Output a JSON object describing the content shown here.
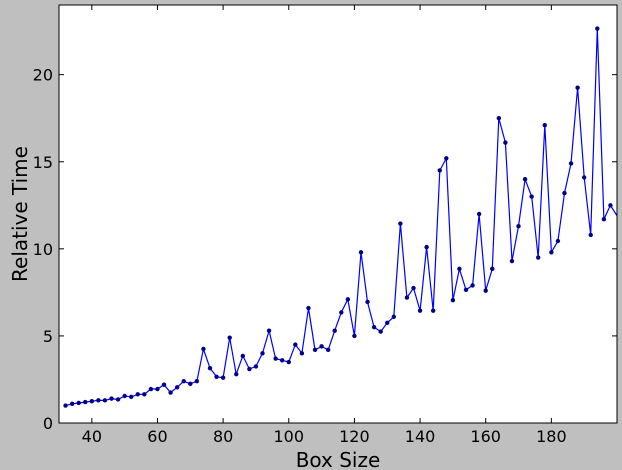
{
  "chart_data": {
    "type": "line",
    "title": "",
    "xlabel": "Box Size",
    "ylabel": "Relative Time",
    "xlim": [
      30,
      200
    ],
    "ylim": [
      0,
      24
    ],
    "xticks": [
      40,
      60,
      80,
      100,
      120,
      140,
      160,
      180
    ],
    "yticks": [
      0,
      5,
      10,
      15,
      20
    ],
    "grid": false,
    "colors": {
      "line": "#0000ff",
      "marker": "#00008b",
      "background": "#bfbfbf",
      "axes": "#ffffff"
    },
    "series": [
      {
        "x": [
          32,
          34,
          36,
          38,
          40,
          42,
          44,
          46,
          48,
          50,
          52,
          54,
          56,
          58,
          60,
          62,
          64,
          66,
          68,
          70,
          72,
          74,
          76,
          78,
          80,
          82,
          84,
          86,
          88,
          90,
          92,
          94,
          96,
          98,
          100,
          102,
          104,
          106,
          108,
          110,
          112,
          114,
          116,
          118,
          120,
          122,
          124,
          126,
          128,
          130,
          132,
          134,
          136,
          138,
          140,
          142,
          144,
          146,
          148,
          150,
          152,
          154,
          156,
          158,
          160,
          162,
          164,
          166,
          168,
          170,
          172,
          174,
          176,
          178,
          180,
          182,
          184,
          186,
          188,
          190,
          192,
          194,
          196,
          198,
          200
        ],
        "y": [
          1.0,
          1.1,
          1.15,
          1.2,
          1.25,
          1.3,
          1.3,
          1.4,
          1.35,
          1.55,
          1.5,
          1.65,
          1.65,
          1.95,
          1.95,
          2.2,
          1.75,
          2.05,
          2.4,
          2.25,
          2.4,
          4.25,
          3.15,
          2.65,
          2.6,
          4.9,
          2.8,
          3.85,
          3.1,
          3.25,
          4.0,
          5.3,
          3.7,
          3.6,
          3.5,
          4.5,
          4.0,
          6.6,
          4.2,
          4.4,
          4.2,
          5.3,
          6.35,
          7.1,
          5.0,
          9.8,
          6.95,
          5.5,
          5.25,
          5.75,
          6.1,
          11.45,
          7.2,
          7.75,
          6.45,
          10.1,
          6.45,
          14.5,
          15.2,
          7.05,
          8.85,
          7.65,
          7.9,
          12.0,
          7.6,
          8.85,
          17.5,
          16.1,
          9.3,
          11.3,
          14.0,
          13.0,
          9.5,
          17.1,
          9.8,
          10.45,
          13.2,
          14.9,
          19.25,
          14.1,
          10.8,
          22.65,
          11.7,
          12.5,
          11.9
        ]
      }
    ]
  }
}
